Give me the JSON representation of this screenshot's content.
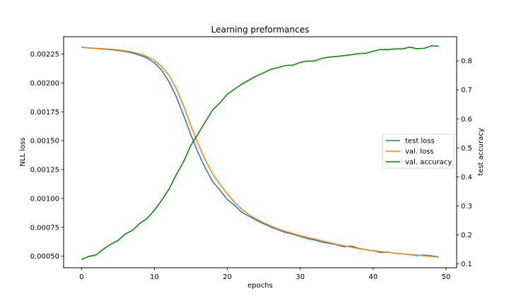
{
  "chart_data": {
    "type": "line",
    "title": "Learning preformances",
    "xlabel": "epochs",
    "ylabel_left": "NLL loss",
    "ylabel_right": "test accuracy",
    "xlim": [
      -2.45,
      51.45
    ],
    "ylim_left": [
      0.0004,
      0.0024
    ],
    "ylim_right": [
      0.087,
      0.883
    ],
    "x_ticks": [
      0,
      10,
      20,
      30,
      40,
      50
    ],
    "y_ticks_left": [
      0.0005,
      0.00075,
      0.001,
      0.00125,
      0.0015,
      0.00175,
      0.002,
      0.00225
    ],
    "y_ticks_left_labels": [
      "0.00050",
      "0.00075",
      "0.00100",
      "0.00125",
      "0.00150",
      "0.00175",
      "0.00200",
      "0.00225"
    ],
    "y_ticks_right": [
      0.1,
      0.2,
      0.3,
      0.4,
      0.5,
      0.6,
      0.7,
      0.8
    ],
    "y_ticks_right_labels": [
      "0.1",
      "0.2",
      "0.3",
      "0.4",
      "0.5",
      "0.6",
      "0.7",
      "0.8"
    ],
    "grid": false,
    "legend_position": "center-right",
    "x": [
      0,
      1,
      2,
      3,
      4,
      5,
      6,
      7,
      8,
      9,
      10,
      11,
      12,
      13,
      14,
      15,
      16,
      17,
      18,
      19,
      20,
      21,
      22,
      23,
      24,
      25,
      26,
      27,
      28,
      29,
      30,
      31,
      32,
      33,
      34,
      35,
      36,
      37,
      38,
      39,
      40,
      41,
      42,
      43,
      44,
      45,
      46,
      47,
      48,
      49
    ],
    "series": [
      {
        "name": "test loss",
        "axis": "left",
        "color": "#1f77b4",
        "values": [
          0.002308,
          0.002303,
          0.002298,
          0.002293,
          0.002288,
          0.002281,
          0.002272,
          0.002259,
          0.00224,
          0.002215,
          0.002174,
          0.00211,
          0.00201,
          0.00188,
          0.00172,
          0.00155,
          0.001395,
          0.00126,
          0.001145,
          0.00107,
          0.00099,
          0.00094,
          0.00088,
          0.000845,
          0.00081,
          0.00078,
          0.000752,
          0.000728,
          0.000705,
          0.00069,
          0.000672,
          0.000652,
          0.00064,
          0.000622,
          0.000612,
          0.000598,
          0.000582,
          0.000588,
          0.000568,
          0.000555,
          0.000548,
          0.000532,
          0.000535,
          0.000525,
          0.00052,
          0.000515,
          0.000505,
          0.00051,
          0.000503,
          0.000493
        ]
      },
      {
        "name": "val. loss",
        "axis": "left",
        "color": "#ff7f0e",
        "values": [
          0.002308,
          0.002304,
          0.0023,
          0.002296,
          0.002292,
          0.002286,
          0.002278,
          0.002266,
          0.00225,
          0.002228,
          0.002195,
          0.00214,
          0.002065,
          0.00195,
          0.0018,
          0.00163,
          0.00147,
          0.00133,
          0.00121,
          0.00112,
          0.00104,
          0.000965,
          0.000905,
          0.000858,
          0.00082,
          0.000788,
          0.00076,
          0.000735,
          0.000714,
          0.000696,
          0.000678,
          0.000662,
          0.000648,
          0.000632,
          0.000618,
          0.000602,
          0.00059,
          0.000578,
          0.000566,
          0.000556,
          0.000548,
          0.00054,
          0.000533,
          0.000526,
          0.00052,
          0.000515,
          0.000509,
          0.000504,
          0.000498,
          0.000492
        ]
      },
      {
        "name": "val. accuracy",
        "axis": "right",
        "color": "#008000",
        "values": [
          0.115,
          0.126,
          0.131,
          0.151,
          0.168,
          0.181,
          0.203,
          0.216,
          0.24,
          0.257,
          0.285,
          0.32,
          0.358,
          0.408,
          0.452,
          0.509,
          0.549,
          0.591,
          0.631,
          0.656,
          0.685,
          0.703,
          0.72,
          0.734,
          0.748,
          0.759,
          0.771,
          0.777,
          0.784,
          0.785,
          0.795,
          0.799,
          0.8,
          0.809,
          0.813,
          0.815,
          0.818,
          0.821,
          0.825,
          0.826,
          0.833,
          0.839,
          0.839,
          0.841,
          0.841,
          0.847,
          0.842,
          0.843,
          0.852,
          0.85
        ]
      }
    ]
  }
}
